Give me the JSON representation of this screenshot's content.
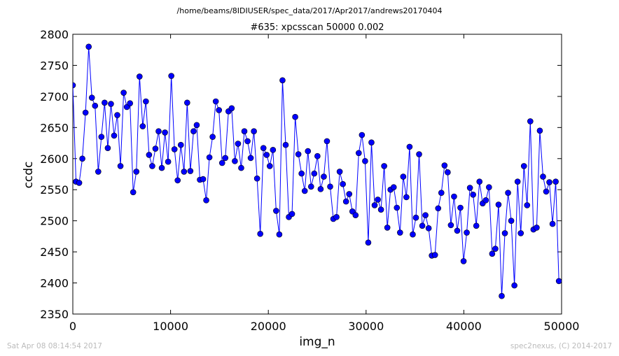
{
  "header": {
    "path": "/home/beams/8IDIUSER/spec_data/2017/Apr2017/andrews20170404",
    "scan": "#635: xpcsscan 50000 0.002"
  },
  "footer": {
    "timestamp": "Sat Apr 08 08:14:54 2017",
    "credit": "spec2nexus, (C) 2014-2017"
  },
  "chart_data": {
    "type": "line",
    "title": "#635: xpcsscan 50000 0.002",
    "xlabel": "img_n",
    "ylabel": "ccdc",
    "xlim": [
      0,
      50000
    ],
    "ylim": [
      2350,
      2800
    ],
    "x_ticks": [
      "0",
      "10000",
      "20000",
      "30000",
      "40000",
      "50000"
    ],
    "y_ticks": [
      "2350",
      "2400",
      "2450",
      "2500",
      "2550",
      "2600",
      "2650",
      "2700",
      "2750",
      "2800"
    ],
    "grid": false,
    "line_color": "#0000ff",
    "marker_color": "#0000ff",
    "series": [
      {
        "x_start": 0,
        "x_step": 325,
        "values": [
          2718,
          2563,
          2561,
          2600,
          2674,
          2780,
          2698,
          2685,
          2579,
          2635,
          2690,
          2617,
          2688,
          2637,
          2670,
          2588,
          2706,
          2683,
          2689,
          2546,
          2579,
          2732,
          2652,
          2692,
          2606,
          2588,
          2616,
          2644,
          2585,
          2642,
          2595,
          2733,
          2615,
          2565,
          2622,
          2579,
          2690,
          2580,
          2644,
          2654,
          2566,
          2567,
          2533,
          2602,
          2635,
          2692,
          2678,
          2593,
          2601,
          2676,
          2681,
          2596,
          2624,
          2585,
          2644,
          2628,
          2601,
          2644,
          2568,
          2479,
          2617,
          2606,
          2588,
          2614,
          2516,
          2478,
          2726,
          2622,
          2506,
          2511,
          2667,
          2607,
          2576,
          2548,
          2612,
          2555,
          2576,
          2604,
          2551,
          2571,
          2628,
          2555,
          2503,
          2506,
          2579,
          2559,
          2531,
          2543,
          2515,
          2509,
          2609,
          2638,
          2596,
          2465,
          2626,
          2525,
          2534,
          2518,
          2588,
          2489,
          2550,
          2554,
          2521,
          2481,
          2571,
          2538,
          2619,
          2478,
          2505,
          2607,
          2492,
          2509,
          2488,
          2444,
          2445,
          2520,
          2545,
          2589,
          2578,
          2493,
          2539,
          2484,
          2521,
          2435,
          2481,
          2553,
          2542,
          2492,
          2563,
          2528,
          2533,
          2554,
          2447,
          2455,
          2526,
          2379,
          2480,
          2545,
          2500,
          2396,
          2563,
          2480,
          2588,
          2525,
          2660,
          2486,
          2489,
          2645,
          2571,
          2547,
          2562,
          2495,
          2563,
          2403
        ]
      }
    ]
  }
}
